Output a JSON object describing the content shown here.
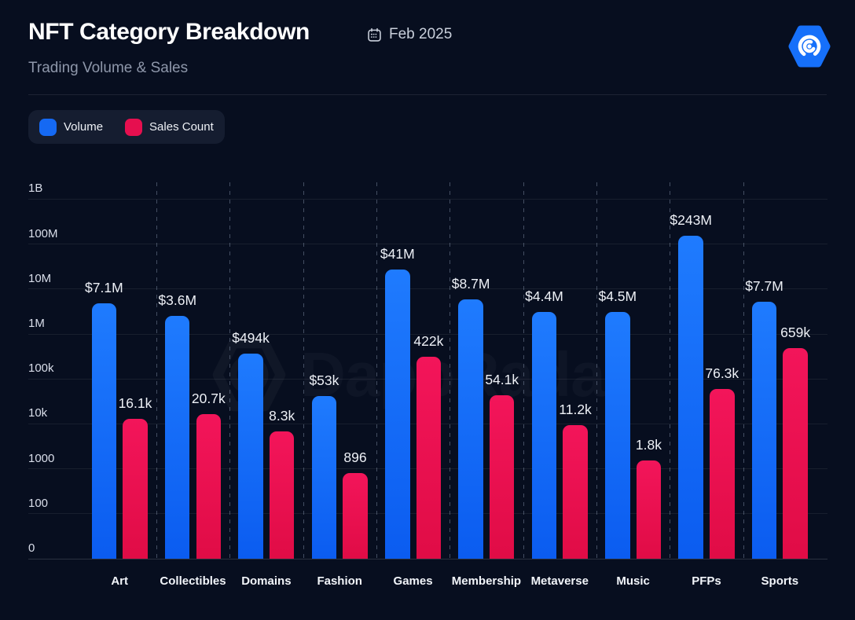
{
  "header": {
    "title": "NFT Category Breakdown",
    "subtitle": "Trading Volume & Sales",
    "period": "Feb 2025"
  },
  "legend": [
    {
      "label": "Volume",
      "color": "#1569f3"
    },
    {
      "label": "Sales Count",
      "color": "#e60f4f"
    }
  ],
  "watermark_text": "DappRadar",
  "colors": {
    "background": "#070e1f",
    "volume_top": "#1f7bfe",
    "volume_bottom": "#0b5cf0",
    "sales_top": "#f3155a",
    "sales_bottom": "#e00c46",
    "logo_blue": "#1670fa"
  },
  "chart_data": {
    "type": "bar",
    "scale": "log",
    "title": "NFT Category Breakdown",
    "subtitle": "Trading Volume & Sales",
    "categories": [
      "Art",
      "Collectibles",
      "Domains",
      "Fashion",
      "Games",
      "Membership",
      "Metaverse",
      "Music",
      "PFPs",
      "Sports"
    ],
    "series": [
      {
        "name": "Volume",
        "color_top": "#1f7bfe",
        "color_bottom": "#0b5cf0",
        "values": [
          7100000,
          3600000,
          494000,
          53000,
          41000000,
          8700000,
          4400000,
          4500000,
          243000000,
          7700000
        ],
        "labels": [
          "$7.1M",
          "$3.6M",
          "$494k",
          "$53k",
          "$41M",
          "$8.7M",
          "$4.4M",
          "$4.5M",
          "$243M",
          "$7.7M"
        ]
      },
      {
        "name": "Sales Count",
        "color_top": "#f3155a",
        "color_bottom": "#e00c46",
        "values": [
          16100,
          20700,
          8300,
          896,
          422000,
          54100,
          11200,
          1800,
          76300,
          659000
        ],
        "labels": [
          "16.1k",
          "20.7k",
          "8.3k",
          "896",
          "422k",
          "54.1k",
          "11.2k",
          "1.8k",
          "76.3k",
          "659k"
        ]
      }
    ],
    "y_ticks": [
      "1B",
      "100M",
      "10M",
      "1M",
      "100k",
      "10k",
      "1000",
      "100",
      "0"
    ],
    "y_tick_values": [
      1000000000,
      100000000,
      10000000,
      1000000,
      100000,
      10000,
      1000,
      100,
      0
    ],
    "ylim": [
      0,
      1000000000
    ],
    "grid": true,
    "legend_position": "top-left"
  }
}
